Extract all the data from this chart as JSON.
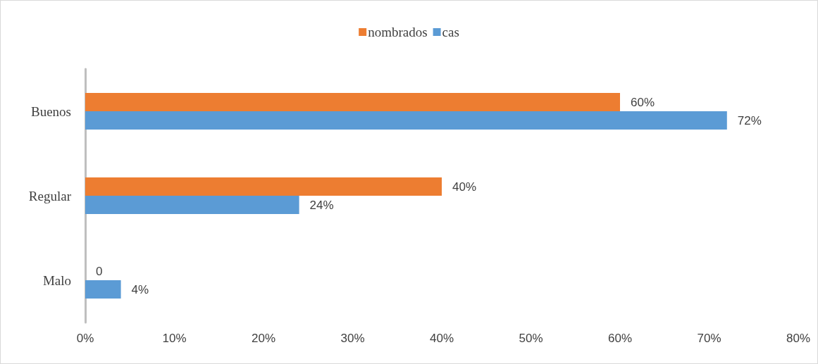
{
  "chart_data": {
    "type": "bar",
    "orientation": "horizontal",
    "categories": [
      "Buenos",
      "Regular",
      "Malo"
    ],
    "series": [
      {
        "name": "nombrados",
        "color": "#ed7d31",
        "values": [
          60,
          40,
          0
        ],
        "value_labels": [
          "60%",
          "40%",
          "0"
        ]
      },
      {
        "name": "cas",
        "color": "#5b9bd5",
        "values": [
          72,
          24,
          4
        ],
        "value_labels": [
          "72%",
          "24%",
          "4%"
        ]
      }
    ],
    "xlim": [
      0,
      80
    ],
    "xticks": [
      {
        "value": 0,
        "label": "0%"
      },
      {
        "value": 10,
        "label": "10%"
      },
      {
        "value": 20,
        "label": "20%"
      },
      {
        "value": 30,
        "label": "30%"
      },
      {
        "value": 40,
        "label": "40%"
      },
      {
        "value": 50,
        "label": "50%"
      },
      {
        "value": 60,
        "label": "60%"
      },
      {
        "value": 70,
        "label": "70%"
      },
      {
        "value": 80,
        "label": "80%"
      }
    ],
    "grid": false,
    "legend": "top"
  }
}
